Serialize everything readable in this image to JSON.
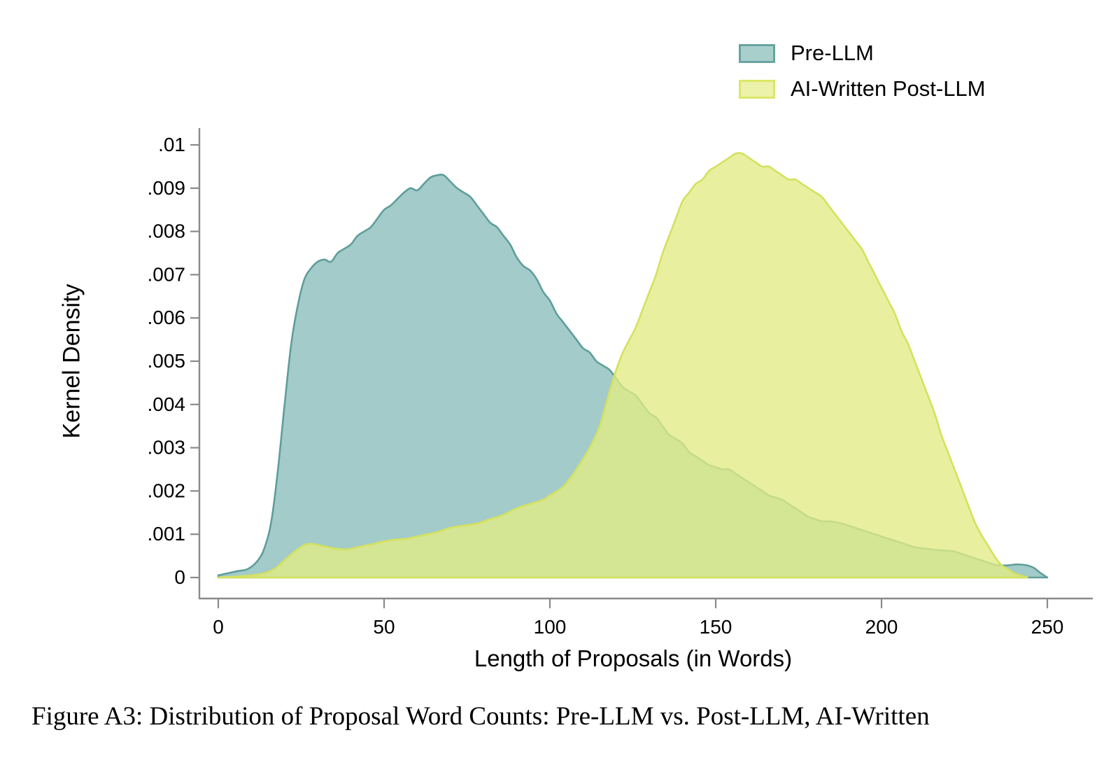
{
  "figure": {
    "caption": "Figure A3: Distribution of Proposal Word Counts: Pre-LLM vs. Post-LLM, AI-Written"
  },
  "legend": {
    "items": [
      {
        "label": "Pre-LLM",
        "swatch_fill": "#a9cfcc",
        "swatch_border": "#68a4a0"
      },
      {
        "label": "AI-Written Post-LLM",
        "swatch_fill": "#ecf2a9",
        "swatch_border": "#dbe766"
      }
    ]
  },
  "axes": {
    "line_color": "#8a8a8a",
    "text_color": "#000000"
  },
  "chart_data": {
    "type": "area",
    "subtype": "kernel-density",
    "title": "",
    "xlabel": "Length of Proposals (in Words)",
    "ylabel": "Kernel Density",
    "xlim": [
      0,
      250
    ],
    "ylim": [
      0,
      0.01
    ],
    "grid": false,
    "legend_position": "top-right",
    "x_ticks": [
      0,
      50,
      100,
      150,
      200,
      250
    ],
    "x_tick_labels": [
      "0",
      "50",
      "100",
      "150",
      "200",
      "250"
    ],
    "y_ticks": [
      0,
      0.001,
      0.002,
      0.003,
      0.004,
      0.005,
      0.006,
      0.007,
      0.008,
      0.009,
      0.01
    ],
    "y_tick_labels": [
      "0",
      ".001",
      ".002",
      ".003",
      ".004",
      ".005",
      ".006",
      ".007",
      ".008",
      ".009",
      ".01"
    ],
    "series": [
      {
        "name": "Pre-LLM",
        "fill": "#a3cbca",
        "fill_opacity": 1,
        "stroke": "#5f9e9a",
        "points": [
          [
            0,
            5e-05
          ],
          [
            3,
            0.0001
          ],
          [
            6,
            0.00015
          ],
          [
            9,
            0.0002
          ],
          [
            12,
            0.0004
          ],
          [
            14,
            0.0007
          ],
          [
            16,
            0.0013
          ],
          [
            18,
            0.0025
          ],
          [
            20,
            0.004
          ],
          [
            22,
            0.0054
          ],
          [
            24,
            0.0063
          ],
          [
            26,
            0.0069
          ],
          [
            28,
            0.00715
          ],
          [
            30,
            0.0073
          ],
          [
            32,
            0.00735
          ],
          [
            34,
            0.0073
          ],
          [
            36,
            0.0075
          ],
          [
            38,
            0.0076
          ],
          [
            40,
            0.0077
          ],
          [
            42,
            0.0079
          ],
          [
            44,
            0.008
          ],
          [
            46,
            0.0081
          ],
          [
            48,
            0.0083
          ],
          [
            50,
            0.0085
          ],
          [
            52,
            0.0086
          ],
          [
            54,
            0.00875
          ],
          [
            56,
            0.0089
          ],
          [
            58,
            0.009
          ],
          [
            60,
            0.00895
          ],
          [
            62,
            0.0091
          ],
          [
            64,
            0.00925
          ],
          [
            66,
            0.0093
          ],
          [
            68,
            0.0093
          ],
          [
            70,
            0.00915
          ],
          [
            72,
            0.009
          ],
          [
            74,
            0.0089
          ],
          [
            76,
            0.0088
          ],
          [
            78,
            0.0086
          ],
          [
            80,
            0.0084
          ],
          [
            82,
            0.0082
          ],
          [
            84,
            0.0081
          ],
          [
            86,
            0.0079
          ],
          [
            88,
            0.0077
          ],
          [
            90,
            0.0074
          ],
          [
            92,
            0.0072
          ],
          [
            94,
            0.0071
          ],
          [
            96,
            0.0069
          ],
          [
            98,
            0.0066
          ],
          [
            100,
            0.0064
          ],
          [
            102,
            0.0061
          ],
          [
            104,
            0.0059
          ],
          [
            106,
            0.0057
          ],
          [
            108,
            0.0055
          ],
          [
            110,
            0.0053
          ],
          [
            112,
            0.0052
          ],
          [
            114,
            0.005
          ],
          [
            116,
            0.0049
          ],
          [
            118,
            0.0048
          ],
          [
            120,
            0.0046
          ],
          [
            122,
            0.0044
          ],
          [
            124,
            0.0043
          ],
          [
            126,
            0.0042
          ],
          [
            128,
            0.004
          ],
          [
            130,
            0.0038
          ],
          [
            132,
            0.0037
          ],
          [
            134,
            0.0035
          ],
          [
            136,
            0.0033
          ],
          [
            138,
            0.0032
          ],
          [
            140,
            0.0031
          ],
          [
            142,
            0.0029
          ],
          [
            144,
            0.0028
          ],
          [
            146,
            0.0027
          ],
          [
            148,
            0.0026
          ],
          [
            150,
            0.00255
          ],
          [
            152,
            0.0025
          ],
          [
            154,
            0.0025
          ],
          [
            156,
            0.0024
          ],
          [
            158,
            0.0023
          ],
          [
            160,
            0.0022
          ],
          [
            162,
            0.0021
          ],
          [
            164,
            0.002
          ],
          [
            166,
            0.0019
          ],
          [
            168,
            0.00185
          ],
          [
            170,
            0.0018
          ],
          [
            172,
            0.0017
          ],
          [
            174,
            0.0016
          ],
          [
            176,
            0.0015
          ],
          [
            178,
            0.0014
          ],
          [
            180,
            0.00135
          ],
          [
            182,
            0.0013
          ],
          [
            184,
            0.0013
          ],
          [
            186,
            0.00128
          ],
          [
            188,
            0.00125
          ],
          [
            190,
            0.0012
          ],
          [
            192,
            0.00115
          ],
          [
            194,
            0.0011
          ],
          [
            196,
            0.00105
          ],
          [
            198,
            0.001
          ],
          [
            200,
            0.00095
          ],
          [
            202,
            0.0009
          ],
          [
            204,
            0.00085
          ],
          [
            206,
            0.0008
          ],
          [
            208,
            0.00075
          ],
          [
            210,
            0.0007
          ],
          [
            212,
            0.00068
          ],
          [
            214,
            0.00066
          ],
          [
            216,
            0.00064
          ],
          [
            218,
            0.00063
          ],
          [
            220,
            0.00062
          ],
          [
            222,
            0.0006
          ],
          [
            224,
            0.00055
          ],
          [
            226,
            0.0005
          ],
          [
            228,
            0.00045
          ],
          [
            230,
            0.0004
          ],
          [
            232,
            0.00035
          ],
          [
            234,
            0.0003
          ],
          [
            236,
            0.00028
          ],
          [
            238,
            0.00028
          ],
          [
            240,
            0.0003
          ],
          [
            242,
            0.0003
          ],
          [
            244,
            0.00028
          ],
          [
            246,
            0.00022
          ],
          [
            248,
            0.0001
          ],
          [
            250,
            0
          ]
        ]
      },
      {
        "name": "AI-Written Post-LLM",
        "fill": "#e2ec84",
        "fill_opacity": 0.78,
        "stroke": "#d4e15e",
        "points": [
          [
            0,
            0
          ],
          [
            5,
            2e-05
          ],
          [
            10,
            5e-05
          ],
          [
            14,
            0.0001
          ],
          [
            17,
            0.0002
          ],
          [
            20,
            0.0004
          ],
          [
            23,
            0.0006
          ],
          [
            26,
            0.00075
          ],
          [
            28,
            0.00078
          ],
          [
            30,
            0.00075
          ],
          [
            33,
            0.0007
          ],
          [
            36,
            0.00066
          ],
          [
            39,
            0.00065
          ],
          [
            42,
            0.0007
          ],
          [
            45,
            0.00075
          ],
          [
            48,
            0.0008
          ],
          [
            51,
            0.00085
          ],
          [
            54,
            0.00088
          ],
          [
            57,
            0.0009
          ],
          [
            60,
            0.00095
          ],
          [
            63,
            0.001
          ],
          [
            66,
            0.00105
          ],
          [
            70,
            0.00115
          ],
          [
            74,
            0.0012
          ],
          [
            78,
            0.00125
          ],
          [
            82,
            0.00135
          ],
          [
            86,
            0.00145
          ],
          [
            90,
            0.0016
          ],
          [
            94,
            0.0017
          ],
          [
            98,
            0.0018
          ],
          [
            100,
            0.0019
          ],
          [
            104,
            0.0021
          ],
          [
            108,
            0.0025
          ],
          [
            112,
            0.003
          ],
          [
            115,
            0.0035
          ],
          [
            118,
            0.0043
          ],
          [
            120,
            0.0048
          ],
          [
            122,
            0.0052
          ],
          [
            124,
            0.0055
          ],
          [
            126,
            0.0058
          ],
          [
            128,
            0.0062
          ],
          [
            130,
            0.0066
          ],
          [
            132,
            0.007
          ],
          [
            134,
            0.0075
          ],
          [
            136,
            0.0079
          ],
          [
            138,
            0.0083
          ],
          [
            140,
            0.0087
          ],
          [
            142,
            0.0089
          ],
          [
            144,
            0.0091
          ],
          [
            146,
            0.0092
          ],
          [
            148,
            0.0094
          ],
          [
            150,
            0.0095
          ],
          [
            152,
            0.0096
          ],
          [
            154,
            0.0097
          ],
          [
            156,
            0.0098
          ],
          [
            158,
            0.0098
          ],
          [
            160,
            0.0097
          ],
          [
            162,
            0.0096
          ],
          [
            164,
            0.0095
          ],
          [
            166,
            0.0095
          ],
          [
            168,
            0.0094
          ],
          [
            170,
            0.0093
          ],
          [
            172,
            0.0092
          ],
          [
            174,
            0.0092
          ],
          [
            176,
            0.0091
          ],
          [
            178,
            0.009
          ],
          [
            180,
            0.0089
          ],
          [
            182,
            0.0088
          ],
          [
            184,
            0.0086
          ],
          [
            186,
            0.0084
          ],
          [
            188,
            0.0082
          ],
          [
            190,
            0.008
          ],
          [
            192,
            0.0078
          ],
          [
            194,
            0.0076
          ],
          [
            196,
            0.0073
          ],
          [
            198,
            0.007
          ],
          [
            200,
            0.0067
          ],
          [
            202,
            0.0064
          ],
          [
            204,
            0.0061
          ],
          [
            206,
            0.0057
          ],
          [
            208,
            0.0054
          ],
          [
            210,
            0.005
          ],
          [
            212,
            0.0046
          ],
          [
            214,
            0.0042
          ],
          [
            216,
            0.0038
          ],
          [
            218,
            0.0033
          ],
          [
            220,
            0.0029
          ],
          [
            222,
            0.0025
          ],
          [
            224,
            0.0021
          ],
          [
            226,
            0.0017
          ],
          [
            228,
            0.0013
          ],
          [
            230,
            0.001
          ],
          [
            232,
            0.00075
          ],
          [
            234,
            0.0005
          ],
          [
            236,
            0.0003
          ],
          [
            238,
            0.0002
          ],
          [
            240,
            0.0001
          ],
          [
            242,
            5e-05
          ],
          [
            244,
            0
          ]
        ]
      }
    ]
  }
}
